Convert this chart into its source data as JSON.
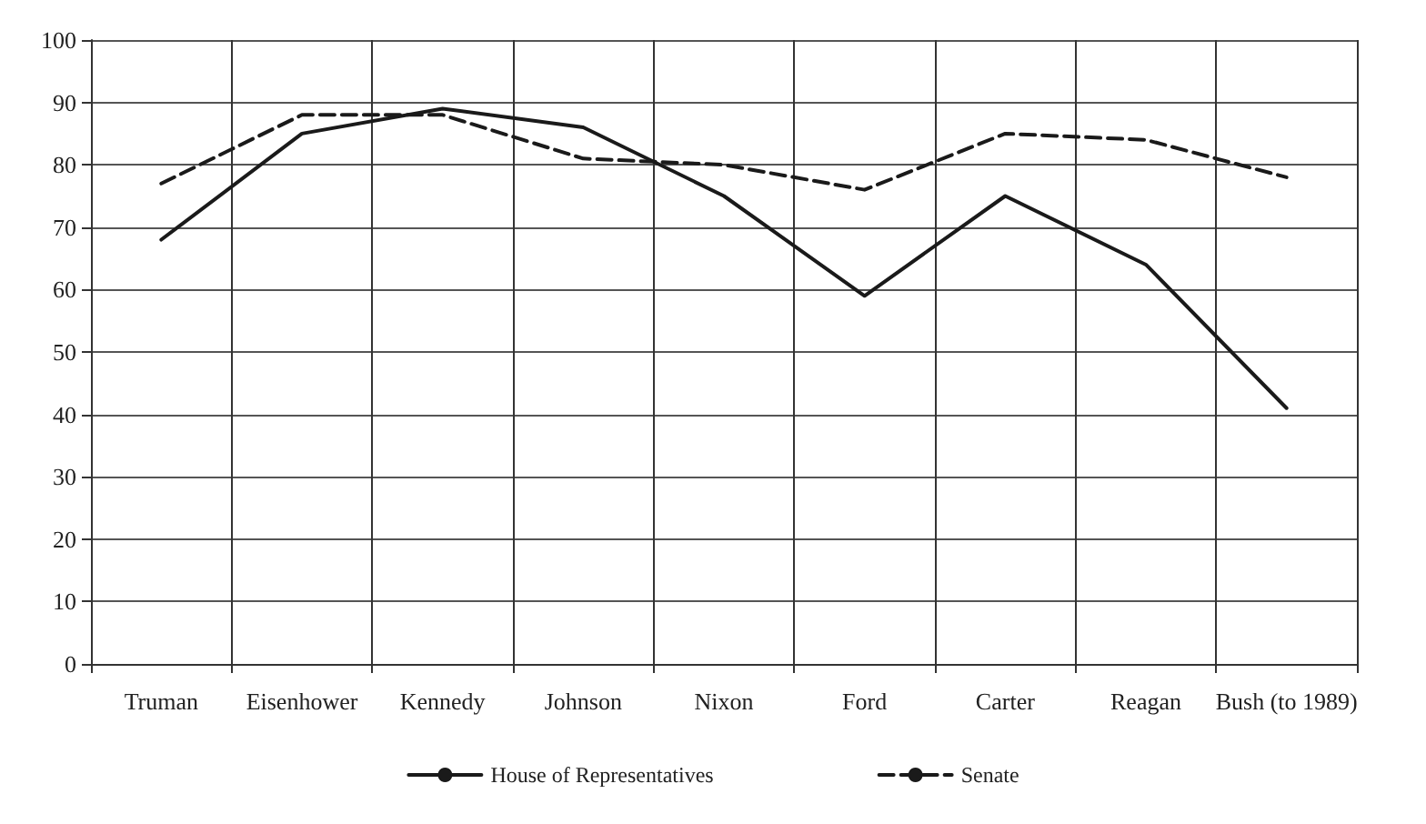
{
  "chart_data": {
    "type": "line",
    "categories": [
      "Truman",
      "Eisenhower",
      "Kennedy",
      "Johnson",
      "Nixon",
      "Ford",
      "Carter",
      "Reagan",
      "Bush (to 1989)"
    ],
    "series": [
      {
        "name": "House of Representatives",
        "color": "#1a1a1a",
        "line_style": "solid",
        "values": [
          68,
          85,
          89,
          86,
          75,
          59,
          75,
          64,
          41
        ]
      },
      {
        "name": "Senate",
        "color": "#1a1a1a",
        "line_style": "dashed",
        "values": [
          77,
          88,
          88,
          81,
          80,
          76,
          85,
          84,
          78
        ]
      }
    ],
    "ylim": [
      0,
      100
    ],
    "yticks": [
      0,
      10,
      20,
      30,
      40,
      50,
      60,
      70,
      80,
      90,
      100
    ],
    "grid": true,
    "legend": "bottom",
    "marker": "none"
  }
}
